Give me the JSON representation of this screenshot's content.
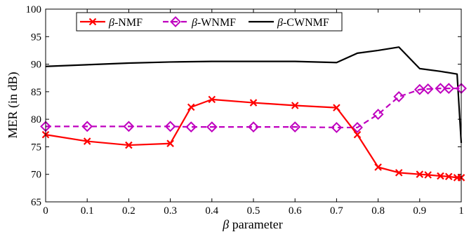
{
  "chart_data": {
    "type": "line",
    "xlabel_symbol": "β",
    "xlabel_text": " parameter",
    "ylabel": "MER (in dB)",
    "xlim": [
      0,
      1
    ],
    "ylim": [
      65,
      100
    ],
    "xticks": [
      "0",
      "0.1",
      "0.2",
      "0.3",
      "0.4",
      "0.5",
      "0.6",
      "0.7",
      "0.8",
      "0.9",
      "1"
    ],
    "yticks": [
      "65",
      "70",
      "75",
      "80",
      "85",
      "90",
      "95",
      "100"
    ],
    "legend_position": "top-left",
    "series": [
      {
        "name_prefix": "β",
        "name_suffix": "-NMF",
        "color": "#ff0000",
        "dash": "solid",
        "marker": "x",
        "x": [
          0,
          0.1,
          0.2,
          0.3,
          0.35,
          0.4,
          0.5,
          0.6,
          0.7,
          0.75,
          0.8,
          0.85,
          0.9,
          0.92,
          0.95,
          0.97,
          0.99,
          1.0
        ],
        "y": [
          77.2,
          76.0,
          75.3,
          75.6,
          82.2,
          83.6,
          83.0,
          82.5,
          82.1,
          77.2,
          71.3,
          70.3,
          70.0,
          69.9,
          69.7,
          69.6,
          69.4,
          69.4
        ]
      },
      {
        "name_prefix": "β",
        "name_suffix": "-WNMF",
        "color": "#bf00bf",
        "dash": "dashed",
        "marker": "diamond",
        "x": [
          0,
          0.1,
          0.2,
          0.3,
          0.35,
          0.4,
          0.5,
          0.6,
          0.7,
          0.75,
          0.8,
          0.85,
          0.9,
          0.92,
          0.95,
          0.97,
          1.0
        ],
        "y": [
          78.7,
          78.7,
          78.7,
          78.7,
          78.6,
          78.6,
          78.6,
          78.6,
          78.5,
          78.5,
          80.9,
          84.1,
          85.4,
          85.5,
          85.6,
          85.6,
          85.6
        ]
      },
      {
        "name_prefix": "β",
        "name_suffix": "-CWNMF",
        "color": "#000000",
        "dash": "solid",
        "marker": "none",
        "x": [
          0,
          0.1,
          0.2,
          0.3,
          0.4,
          0.5,
          0.6,
          0.7,
          0.75,
          0.8,
          0.85,
          0.9,
          0.95,
          0.99,
          1.0
        ],
        "y": [
          89.6,
          89.9,
          90.2,
          90.4,
          90.5,
          90.5,
          90.5,
          90.3,
          92.0,
          92.5,
          93.1,
          89.2,
          88.7,
          88.2,
          75.7
        ]
      }
    ]
  }
}
